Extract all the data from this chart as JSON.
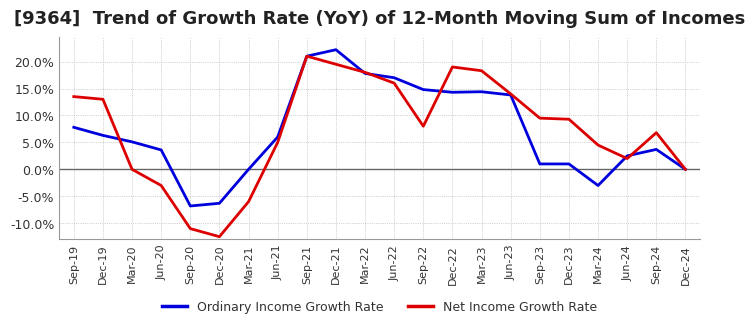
{
  "title": "[9364]  Trend of Growth Rate (YoY) of 12-Month Moving Sum of Incomes",
  "title_fontsize": 13,
  "background_color": "#ffffff",
  "plot_bg_color": "#ffffff",
  "grid_color": "#aaaaaa",
  "ylim": [
    -0.13,
    0.245
  ],
  "yticks": [
    -0.1,
    -0.05,
    0.0,
    0.05,
    0.1,
    0.15,
    0.2
  ],
  "x_labels": [
    "Sep-19",
    "Dec-19",
    "Mar-20",
    "Jun-20",
    "Sep-20",
    "Dec-20",
    "Mar-21",
    "Jun-21",
    "Sep-21",
    "Dec-21",
    "Mar-22",
    "Jun-22",
    "Sep-22",
    "Dec-22",
    "Mar-23",
    "Jun-23",
    "Sep-23",
    "Dec-23",
    "Mar-24",
    "Jun-24",
    "Sep-24",
    "Dec-24"
  ],
  "ordinary_income": [
    0.078,
    0.063,
    0.051,
    0.036,
    -0.068,
    -0.063,
    0.0,
    0.06,
    0.21,
    0.222,
    0.178,
    0.17,
    0.148,
    0.143,
    0.144,
    0.138,
    0.01,
    0.01,
    -0.03,
    0.025,
    0.037,
    0.0
  ],
  "net_income": [
    0.135,
    0.13,
    0.0,
    -0.03,
    -0.11,
    -0.125,
    -0.06,
    0.05,
    0.21,
    0.195,
    0.18,
    0.16,
    0.08,
    0.19,
    0.183,
    0.14,
    0.095,
    0.093,
    0.045,
    0.02,
    0.068,
    0.0
  ],
  "line_color_ordinary": "#0000dd",
  "line_color_net": "#dd0000",
  "legend_ordinary": "Ordinary Income Growth Rate",
  "legend_net": "Net Income Growth Rate"
}
